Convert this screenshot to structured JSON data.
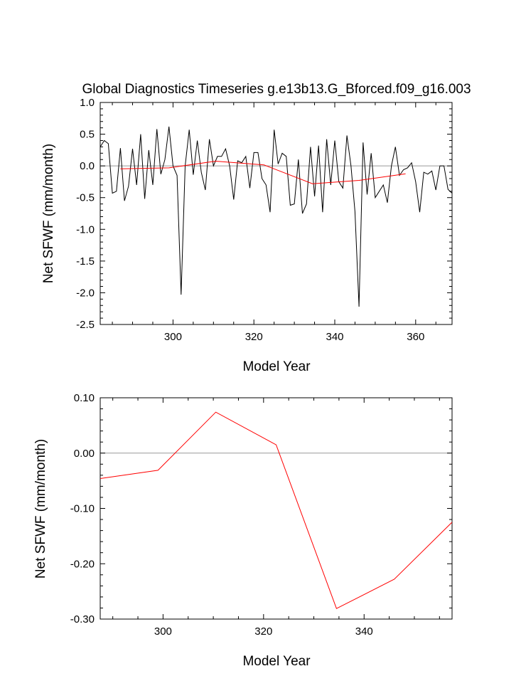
{
  "chart_data": [
    {
      "type": "line",
      "title": "Global Diagnostics Timeseries g.e13b13.G_Bforced.f09_g16.003",
      "xlabel": "Model Year",
      "ylabel": "Net SFWF (mm/month)",
      "xlim": [
        282,
        369
      ],
      "ylim": [
        -2.5,
        1.0
      ],
      "xticks": [
        300,
        320,
        340,
        360
      ],
      "yticks": [
        1.0,
        0.5,
        0.0,
        -0.5,
        -1.0,
        -1.5,
        -2.0,
        -2.5
      ],
      "xtick_labels": [
        "300",
        "320",
        "340",
        "360"
      ],
      "ytick_labels": [
        "1.0",
        "0.5",
        "0.0",
        "-0.5",
        "-1.0",
        "-1.5",
        "-2.0",
        "-2.5"
      ],
      "reference_line": 0.0,
      "series": [
        {
          "color": "#000000",
          "x": [
            282,
            283,
            284,
            285,
            286,
            287,
            288,
            289,
            290,
            291,
            292,
            293,
            294,
            295,
            296,
            297,
            298,
            299,
            300,
            301,
            302,
            303,
            304,
            305,
            306,
            307,
            308,
            309,
            310,
            311,
            312,
            313,
            314,
            315,
            316,
            317,
            318,
            319,
            320,
            321,
            322,
            323,
            324,
            325,
            326,
            327,
            328,
            329,
            330,
            331,
            332,
            333,
            334,
            335,
            336,
            337,
            338,
            339,
            340,
            341,
            342,
            343,
            344,
            345,
            346,
            347,
            348,
            349,
            350,
            351,
            352,
            353,
            354,
            355,
            356,
            357,
            358,
            359,
            360,
            361,
            362,
            363,
            364,
            365,
            366,
            367,
            368,
            369
          ],
          "values": [
            0.3,
            0.4,
            0.35,
            -0.43,
            -0.4,
            0.28,
            -0.55,
            -0.32,
            0.27,
            -0.3,
            0.5,
            -0.52,
            0.25,
            -0.3,
            0.58,
            -0.13,
            0.1,
            0.62,
            0.0,
            -0.15,
            -2.03,
            0.0,
            0.57,
            -0.14,
            0.4,
            -0.1,
            -0.38,
            0.42,
            0.0,
            0.15,
            0.15,
            0.27,
            0.0,
            -0.53,
            0.08,
            0.05,
            0.15,
            -0.35,
            0.21,
            0.21,
            -0.2,
            -0.3,
            -0.73,
            0.57,
            0.03,
            0.2,
            0.15,
            -0.62,
            -0.6,
            0.1,
            -0.75,
            -0.6,
            0.3,
            -0.48,
            0.32,
            -0.73,
            0.42,
            -0.3,
            0.4,
            -0.25,
            -0.35,
            0.48,
            0.0,
            -0.72,
            -2.22,
            0.37,
            -0.45,
            0.2,
            -0.5,
            -0.4,
            -0.3,
            -0.58,
            0.0,
            0.3,
            -0.15,
            -0.06,
            -0.03,
            0.05,
            -0.25,
            -0.73,
            -0.1,
            -0.13,
            -0.08,
            -0.38,
            0.0,
            0.0,
            -0.37,
            -0.43
          ]
        },
        {
          "color": "#ff0000",
          "x": [
            287.0,
            299.0,
            310.5,
            322.5,
            334.5,
            346.0,
            357.5
          ],
          "values": [
            -0.046,
            -0.031,
            0.074,
            0.015,
            -0.281,
            -0.228,
            -0.125
          ]
        }
      ]
    },
    {
      "type": "line",
      "title": "",
      "xlabel": "Model Year",
      "ylabel": "Net SFWF (mm/month)",
      "xlim": [
        287.5,
        357.5
      ],
      "ylim": [
        -0.3,
        0.1
      ],
      "xticks": [
        300,
        320,
        340
      ],
      "yticks": [
        0.1,
        0.0,
        -0.1,
        -0.2,
        -0.3
      ],
      "xtick_labels": [
        "300",
        "320",
        "340"
      ],
      "ytick_labels": [
        "0.10",
        "0.00",
        "-0.10",
        "-0.20",
        "-0.30"
      ],
      "reference_line": 0.0,
      "series": [
        {
          "color": "#ff0000",
          "x": [
            287.5,
            299.0,
            310.5,
            322.5,
            334.5,
            346.0,
            357.5
          ],
          "values": [
            -0.046,
            -0.031,
            0.074,
            0.015,
            -0.281,
            -0.228,
            -0.125
          ]
        }
      ]
    }
  ]
}
